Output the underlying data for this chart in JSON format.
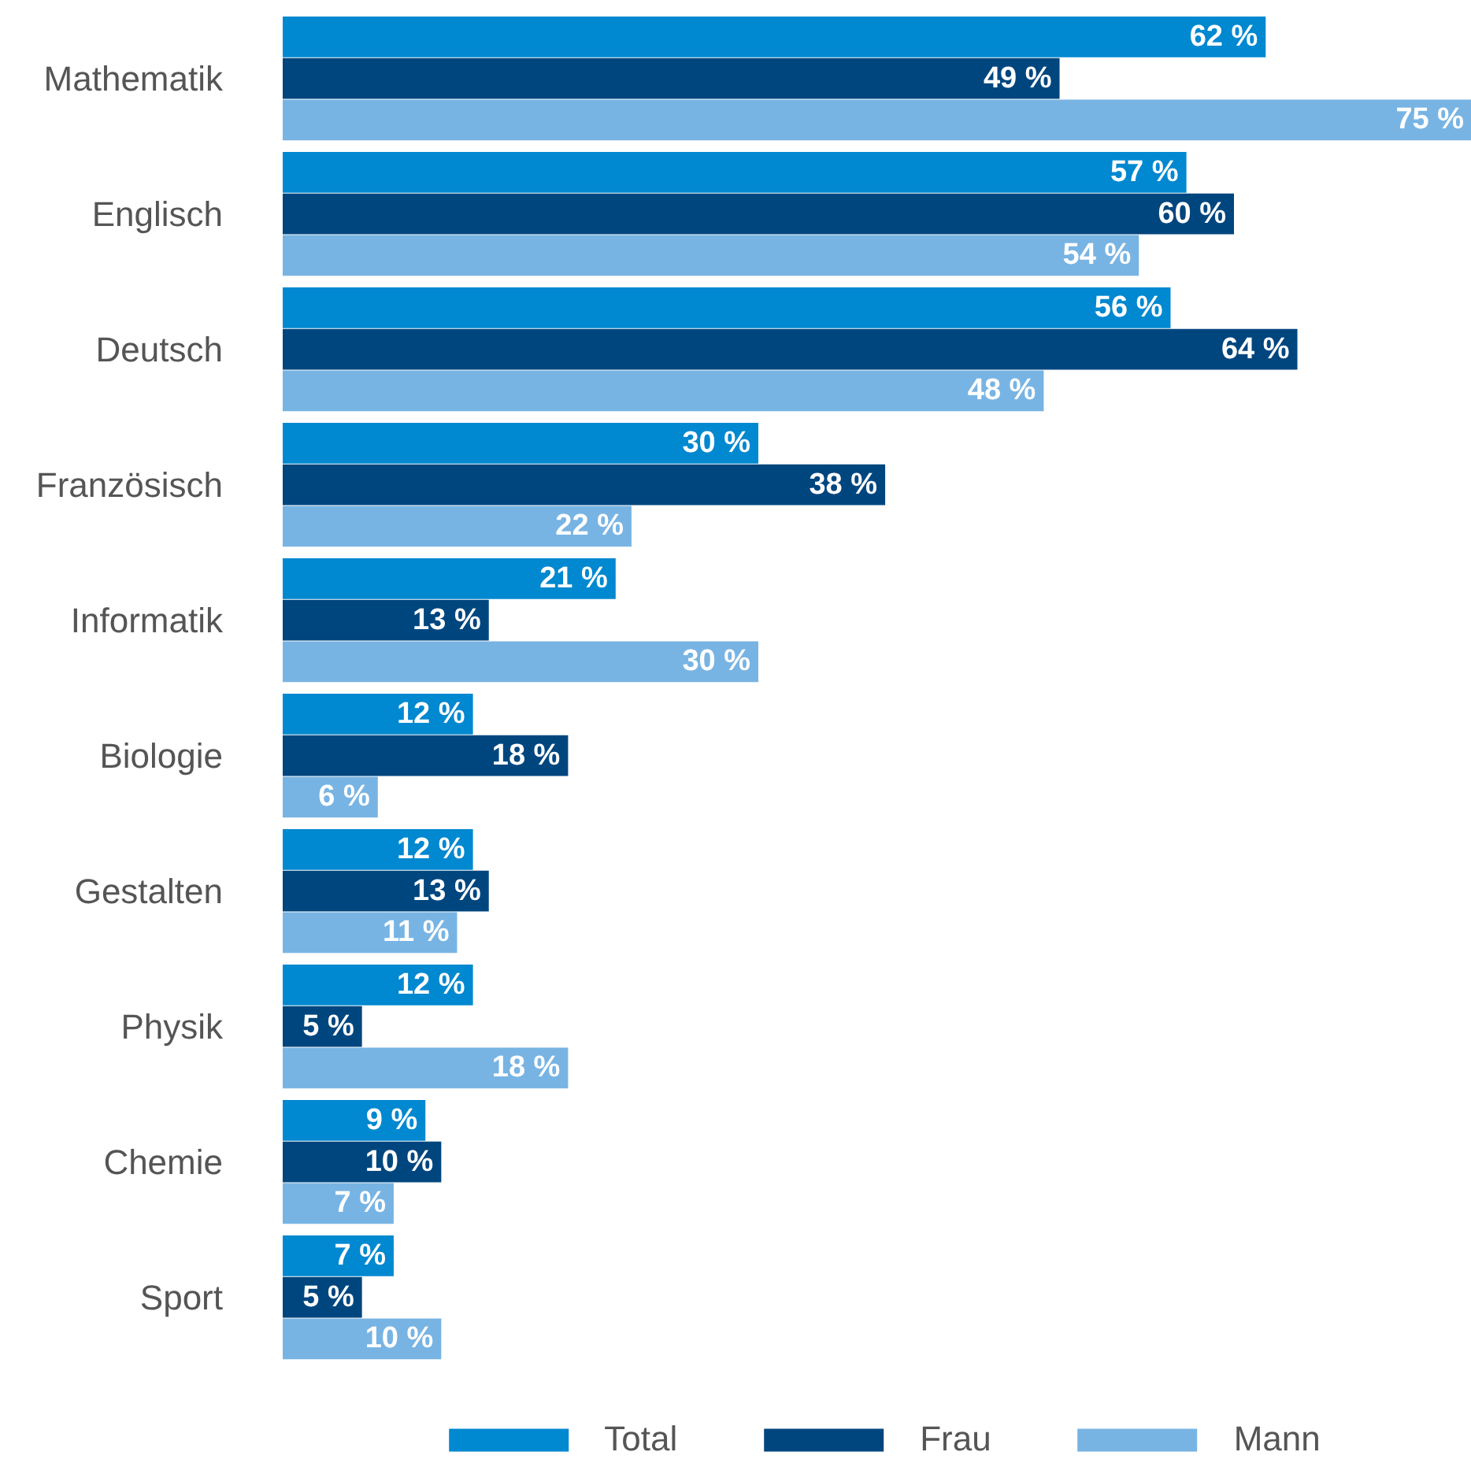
{
  "chart_data": {
    "type": "bar",
    "orientation": "horizontal",
    "legend": "bottom",
    "categories": [
      "Mathematik",
      "Englisch",
      "Deutsch",
      "Französisch",
      "Informatik",
      "Biologie",
      "Gestalten",
      "Physik",
      "Chemie",
      "Sport"
    ],
    "series": [
      {
        "name": "Total",
        "color": "#0088d0",
        "values": [
          62,
          57,
          56,
          30,
          21,
          12,
          12,
          12,
          9,
          7
        ],
        "value_labels": [
          "62 %",
          "57 %",
          "56 %",
          "30 %",
          "21 %",
          "12 %",
          "12 %",
          "12 %",
          "9 %",
          "7 %"
        ]
      },
      {
        "name": "Frau",
        "color": "#00467e",
        "values": [
          49,
          60,
          64,
          38,
          13,
          18,
          13,
          5,
          10,
          5
        ],
        "value_labels": [
          "49 %",
          "60 %",
          "64 %",
          "38 %",
          "13 %",
          "18 %",
          "13 %",
          "5 %",
          "10 %",
          "5 %"
        ]
      },
      {
        "name": "Mann",
        "color": "#78b4e3",
        "values": [
          75,
          54,
          48,
          22,
          30,
          6,
          11,
          18,
          7,
          10
        ],
        "value_labels": [
          "75 %",
          "54 %",
          "48 %",
          "22 %",
          "30 %",
          "6 %",
          "11 %",
          "18 %",
          "7 %",
          "10 %"
        ]
      }
    ]
  }
}
